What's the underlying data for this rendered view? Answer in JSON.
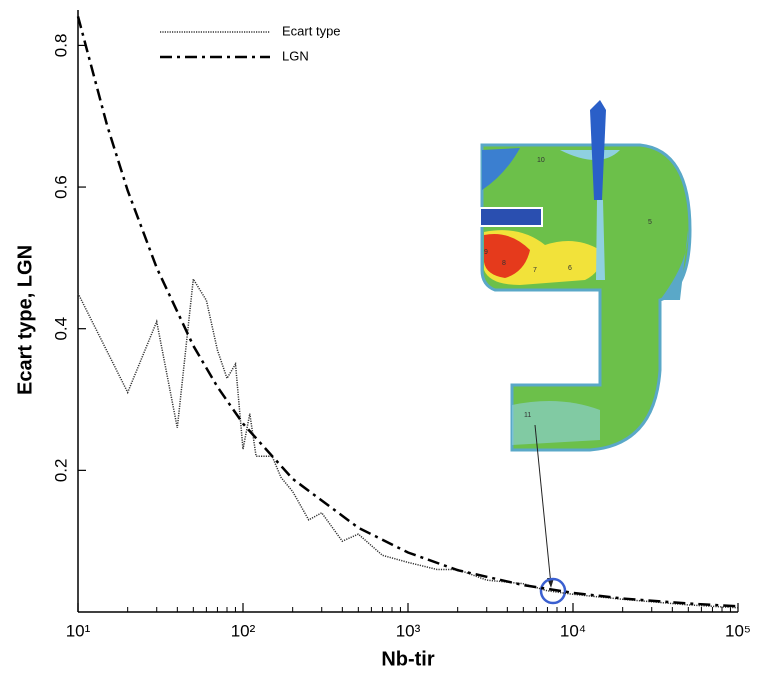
{
  "chart_data": {
    "type": "line",
    "x_label": "Nb-tir",
    "y_label": "Ecart type, LGN",
    "log_x": true,
    "xlim": [
      10,
      100000
    ],
    "xticks": [
      {
        "value": 10,
        "label": "10¹"
      },
      {
        "value": 100,
        "label": "10²"
      },
      {
        "value": 1000,
        "label": "10³"
      },
      {
        "value": 10000,
        "label": "10⁴"
      },
      {
        "value": 100000,
        "label": "10⁵"
      }
    ],
    "ylim": [
      0,
      0.85
    ],
    "yticks": [
      0.2,
      0.4,
      0.6,
      0.8
    ],
    "grid": false,
    "legend_position": "top-left",
    "series": [
      {
        "name": "Ecart type",
        "color": "#333333",
        "line_style": "dotted",
        "x": [
          10,
          20,
          30,
          40,
          50,
          60,
          70,
          80,
          90,
          100,
          110,
          120,
          150,
          170,
          200,
          250,
          300,
          400,
          500,
          700,
          1000,
          1500,
          2000,
          3000,
          5000,
          7000,
          10000,
          20000,
          50000,
          100000
        ],
        "values": [
          0.45,
          0.31,
          0.41,
          0.26,
          0.47,
          0.44,
          0.37,
          0.33,
          0.35,
          0.23,
          0.28,
          0.22,
          0.22,
          0.19,
          0.17,
          0.13,
          0.14,
          0.1,
          0.11,
          0.08,
          0.07,
          0.06,
          0.06,
          0.045,
          0.04,
          0.03,
          0.025,
          0.018,
          0.01,
          0.006
        ]
      },
      {
        "name": "LGN",
        "color": "#000000",
        "line_style": "dash-dot",
        "x": [
          10,
          15,
          20,
          30,
          50,
          70,
          100,
          200,
          500,
          1000,
          2000,
          5000,
          10000,
          20000,
          50000,
          100000
        ],
        "values": [
          0.841,
          0.687,
          0.595,
          0.486,
          0.376,
          0.318,
          0.266,
          0.188,
          0.119,
          0.084,
          0.059,
          0.038,
          0.027,
          0.019,
          0.012,
          0.008
        ]
      }
    ],
    "annotations": [
      "10",
      "5",
      "9",
      "8",
      "7",
      "6",
      "11"
    ]
  }
}
